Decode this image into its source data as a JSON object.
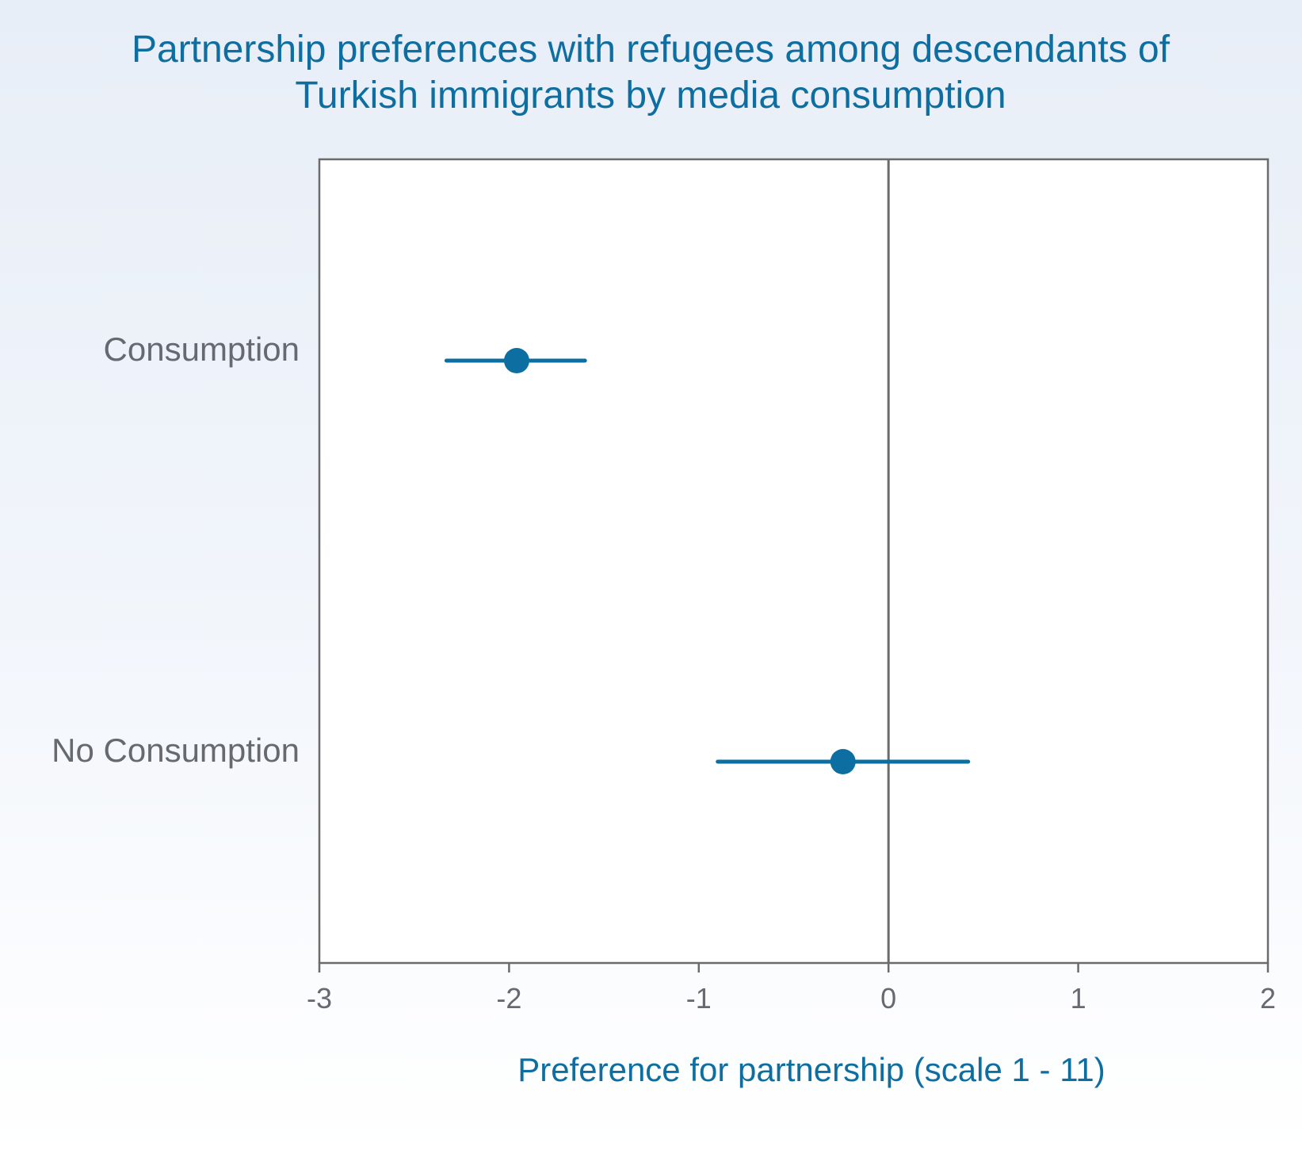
{
  "chart_data": {
    "type": "scatter",
    "title_lines": [
      "Partnership preferences with refugees among descendants of",
      "Turkish immigrants by media consumption"
    ],
    "xlabel": "Preference for partnership (scale 1 - 11)",
    "ylabel": "",
    "xlim": [
      -3,
      2
    ],
    "x_ticks": [
      -3,
      -2,
      -1,
      0,
      1,
      2
    ],
    "x_tick_labels": [
      "-3",
      "-2",
      "-1",
      "0",
      "1",
      "2"
    ],
    "reference_line_x": 0,
    "categories": [
      "Consumption",
      "No Consumption"
    ],
    "points": [
      {
        "category": "Consumption",
        "estimate": -1.96,
        "ci_low": -2.33,
        "ci_high": -1.6
      },
      {
        "category": "No Consumption",
        "estimate": -0.24,
        "ci_low": -0.9,
        "ci_high": 0.42
      }
    ],
    "grid": false,
    "legend": "none",
    "colors": {
      "series": "#0d6fa1",
      "title": "#0d6fa1",
      "axis": "#6b6b6b",
      "labels": "#666a70",
      "plot_background": "#ffffff"
    }
  }
}
